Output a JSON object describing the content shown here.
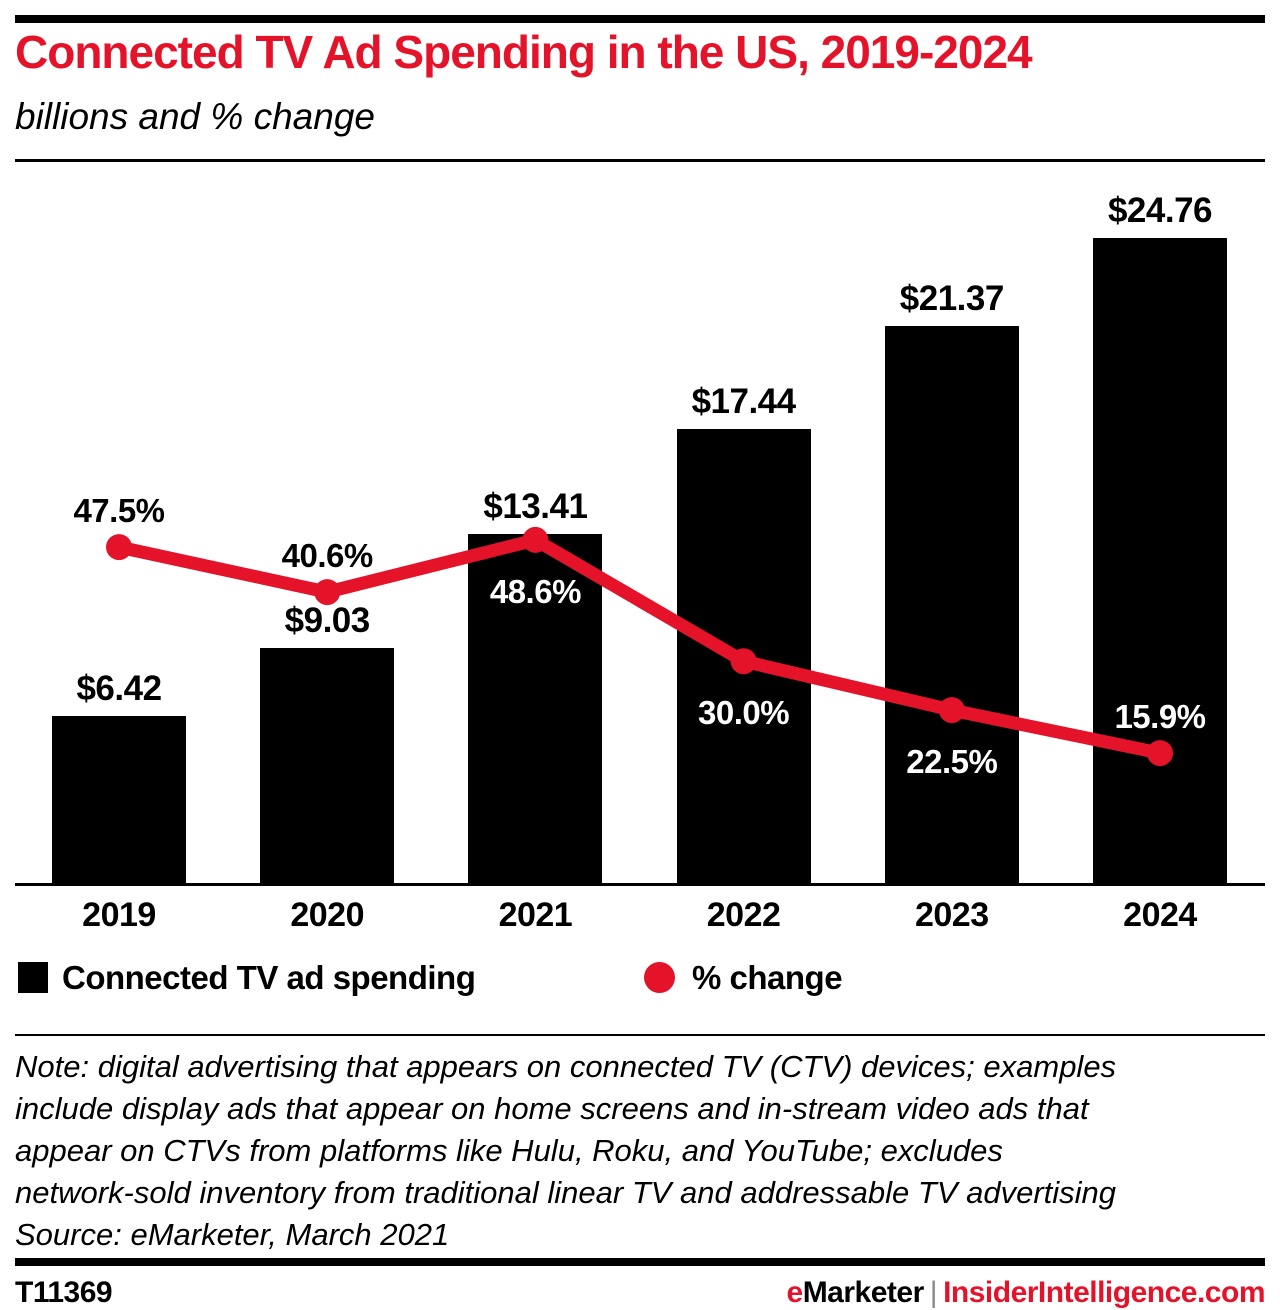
{
  "header": {
    "title": "Connected TV Ad Spending in the US, 2019-2024",
    "subtitle": "billions and % change"
  },
  "chart_data": {
    "type": "bar",
    "subtype": "bar-with-line-overlay",
    "categories": [
      "2019",
      "2020",
      "2021",
      "2022",
      "2023",
      "2024"
    ],
    "series": [
      {
        "name": "Connected TV ad spending",
        "type": "bar",
        "unit": "US$ billions",
        "values": [
          6.42,
          9.03,
          13.41,
          17.44,
          21.37,
          24.76
        ],
        "labels": [
          "$6.42",
          "$9.03",
          "$13.41",
          "$17.44",
          "$21.37",
          "$24.76"
        ]
      },
      {
        "name": "% change",
        "type": "line",
        "unit": "%",
        "values": [
          47.5,
          40.6,
          48.6,
          30.0,
          22.5,
          15.9
        ],
        "labels": [
          "47.5%",
          "40.6%",
          "48.6%",
          "30.0%",
          "22.5%",
          "15.9%"
        ],
        "label_placement": [
          "above",
          "above",
          "below",
          "below",
          "below",
          "above"
        ],
        "label_color": [
          "#000000",
          "#000000",
          "#ffffff",
          "#ffffff",
          "#ffffff",
          "#ffffff"
        ]
      }
    ],
    "title": "Connected TV Ad Spending in the US, 2019-2024",
    "xlabel": "",
    "ylabel": "",
    "grid": false,
    "legend_position": "bottom",
    "colors": {
      "bar": "#000000",
      "line": "#e4132a"
    }
  },
  "legend": [
    {
      "label": "Connected TV ad spending",
      "swatch": "square",
      "color": "#000000"
    },
    {
      "label": "% change",
      "swatch": "circle",
      "color": "#e4132a"
    }
  ],
  "note": {
    "lines": [
      "Note: digital advertising that appears on connected TV (CTV) devices; examples",
      "include display ads that appear on home screens and in-stream video ads that",
      "appear on CTVs from platforms like Hulu, Roku, and YouTube; excludes",
      "network-sold inventory from traditional linear TV and addressable TV advertising",
      "Source: eMarketer, March 2021"
    ]
  },
  "footer": {
    "chart_id": "T11369",
    "brand_e": "e",
    "brand_marketer": "Marketer",
    "brand_divider": "|",
    "brand_site": "InsiderIntelligence.com"
  }
}
